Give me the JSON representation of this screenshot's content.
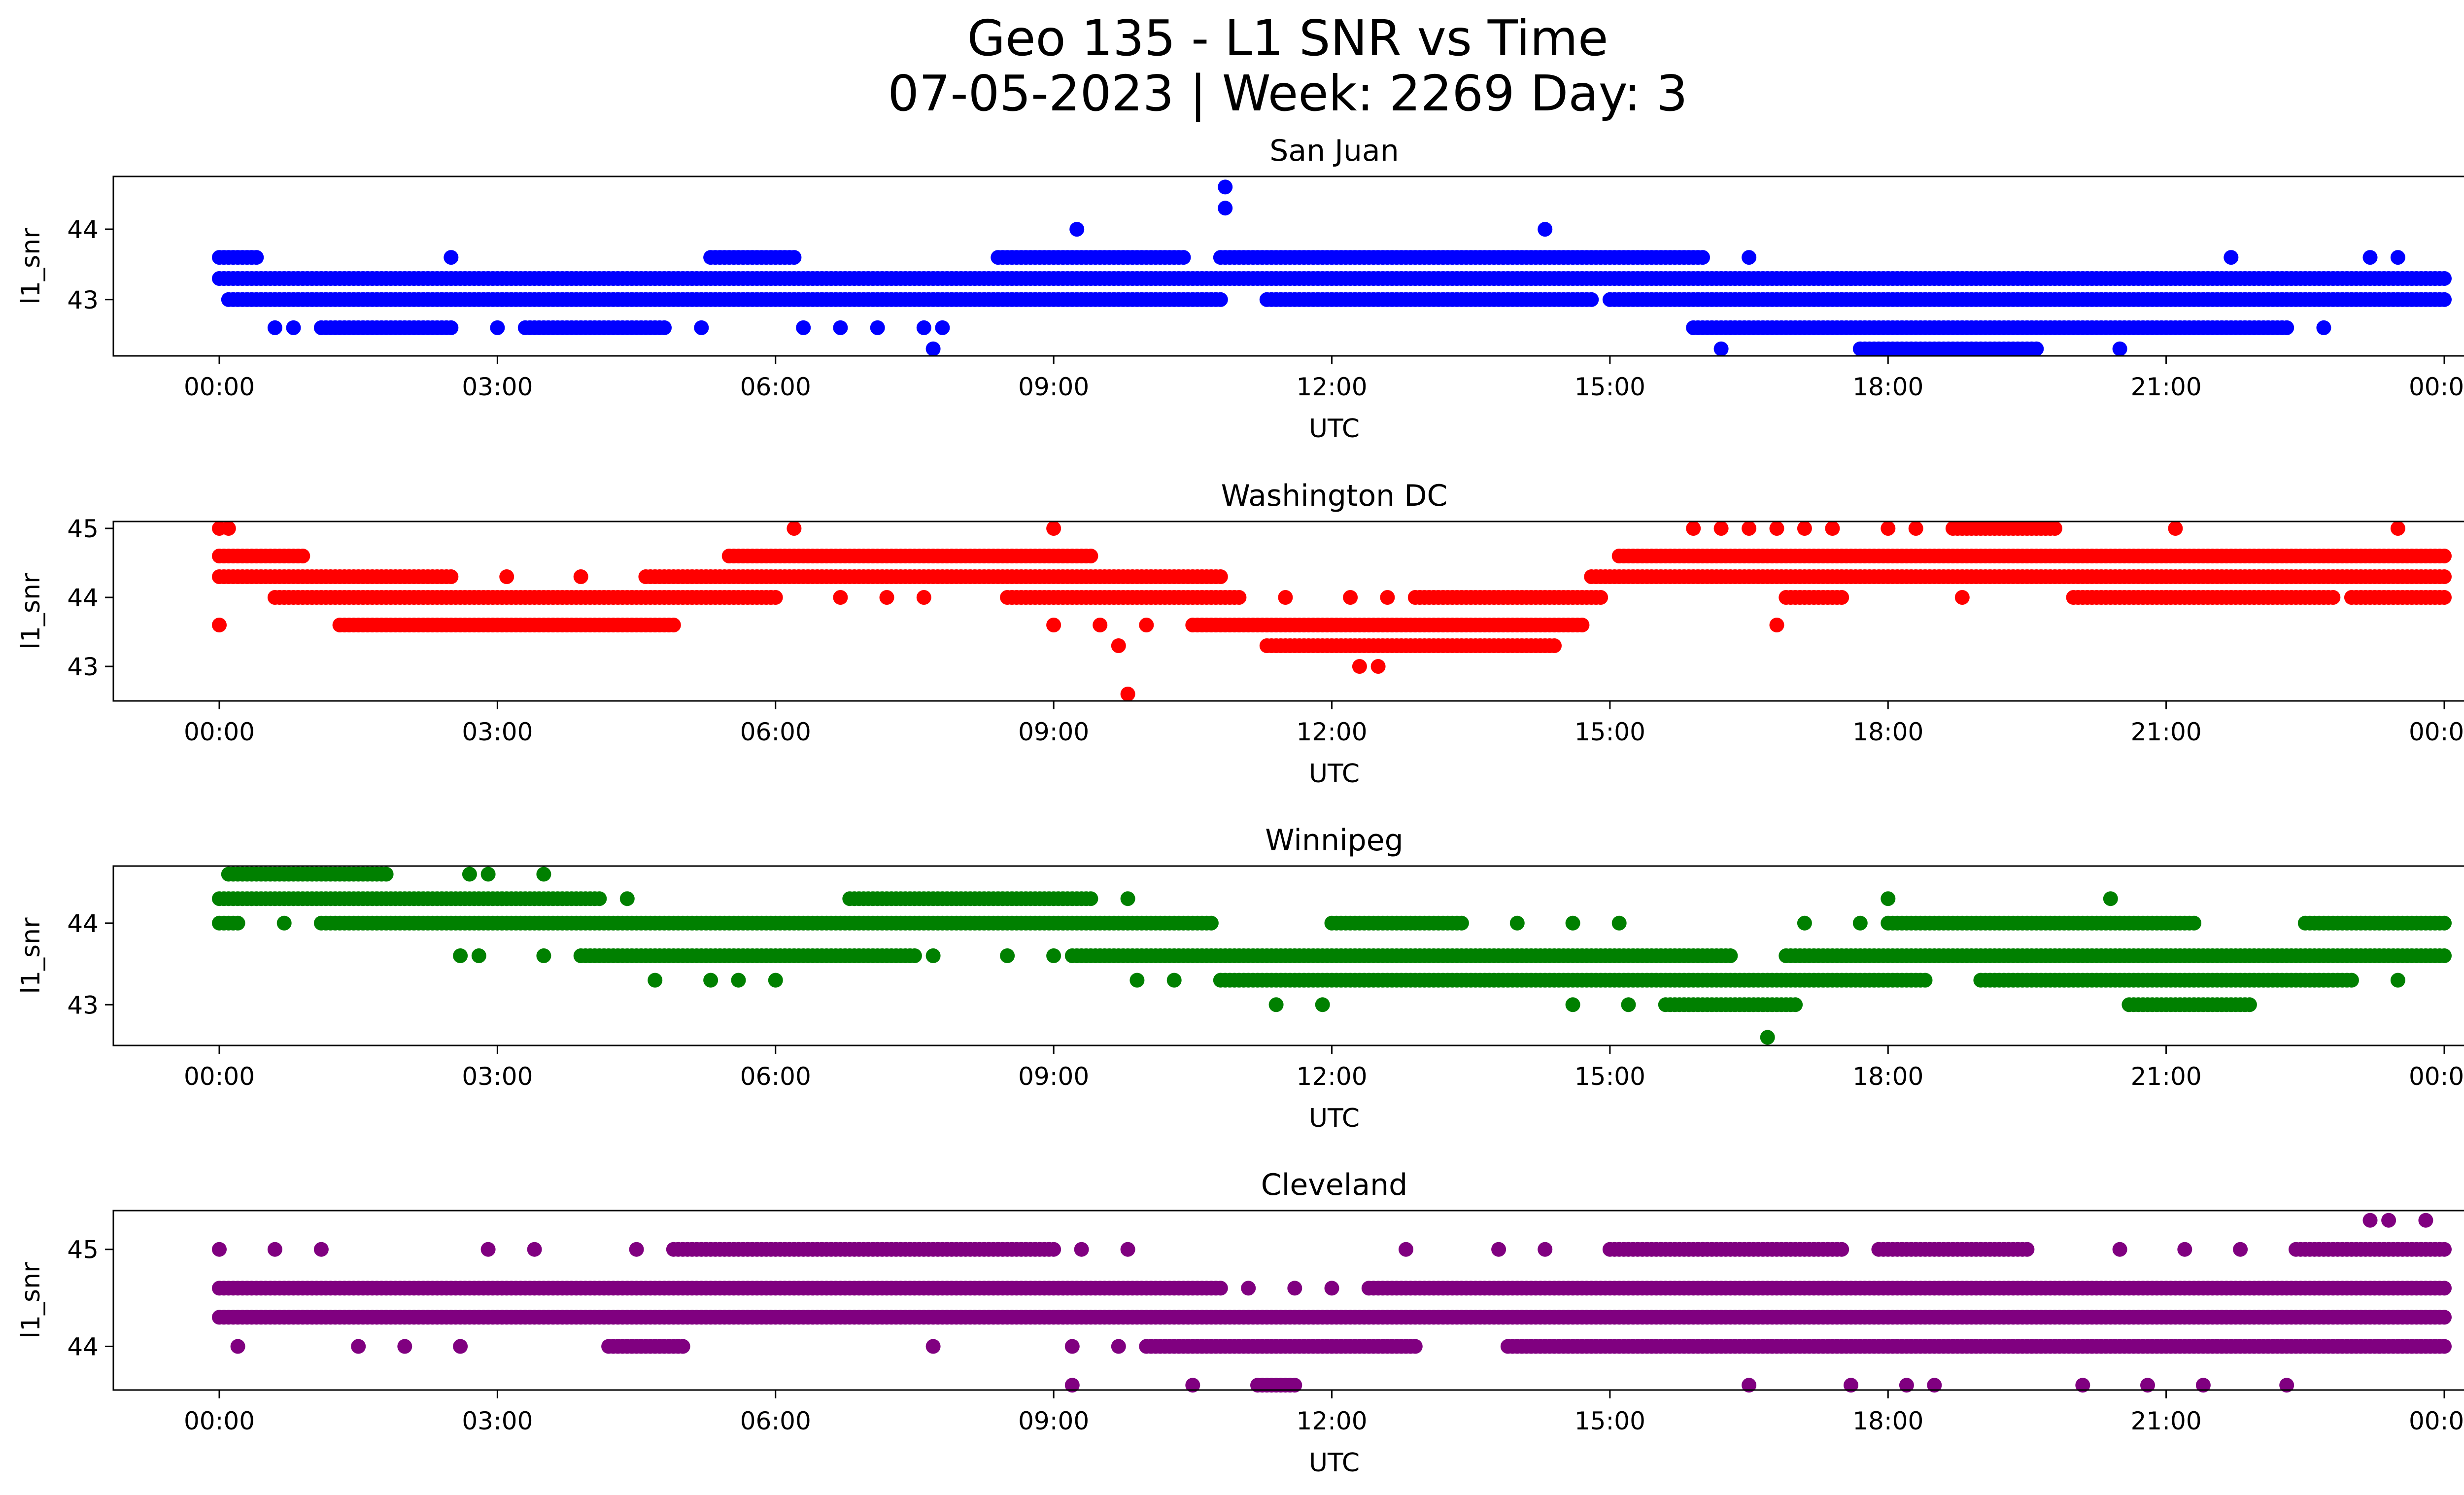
{
  "title_line1": "Geo 135 - L1 SNR vs Time",
  "title_line2": "07-05-2023 | Week: 2269 Day: 3",
  "chart_data": [
    {
      "type": "scatter",
      "title": "San Juan",
      "color": "#0000ff",
      "xlabel": "UTC",
      "ylabel": "l1_snr",
      "x_unit": "hours UTC",
      "xlim": [
        "00:00",
        "24:00"
      ],
      "ylim": [
        42.2,
        44.75
      ],
      "yticks": [
        43,
        44
      ],
      "xtick_labels": [
        "00:00",
        "03:00",
        "06:00",
        "09:00",
        "12:00",
        "15:00",
        "18:00",
        "21:00",
        "00:00"
      ],
      "bands": [
        {
          "y": 43.3,
          "segments": [
            [
              0.0,
              17.6
            ]
          ]
        },
        {
          "y": 43.6,
          "segments": [
            [
              0.0,
              0.4
            ],
            [
              5.3,
              6.2
            ],
            [
              8.4,
              10.4
            ],
            [
              10.8,
              16.0
            ]
          ],
          "dots": [
            2.5,
            16.5,
            21.7,
            23.2,
            23.5
          ]
        },
        {
          "y": 43.0,
          "segments": [
            [
              0.1,
              10.8
            ],
            [
              11.3,
              14.8
            ],
            [
              15.0,
              24.0
            ]
          ],
          "dots": []
        },
        {
          "y": 42.6,
          "segments": [
            [
              1.1,
              2.5
            ],
            [
              3.3,
              4.8
            ],
            [
              15.9,
              22.3
            ]
          ],
          "dots": [
            0.6,
            0.8,
            3.0,
            5.2,
            6.3,
            6.7,
            7.1,
            7.6,
            7.8,
            16.3,
            22.7
          ]
        },
        {
          "y": 43.3,
          "segments": [
            [
              17.6,
              24.0
            ]
          ],
          "dots": []
        },
        {
          "y": 42.3,
          "segments": [
            [
              17.7,
              19.6
            ]
          ],
          "dots": [
            7.7,
            16.2,
            20.5
          ]
        }
      ],
      "points": [
        {
          "x": 9.25,
          "y": 44.0
        },
        {
          "x": 14.3,
          "y": 44.0
        },
        {
          "x": 10.85,
          "y": 44.3
        },
        {
          "x": 10.85,
          "y": 44.6
        },
        {
          "x": 19.5,
          "y": 43.3
        }
      ]
    },
    {
      "type": "scatter",
      "title": "Washington DC",
      "color": "#ff0000",
      "xlabel": "UTC",
      "ylabel": "l1_snr",
      "x_unit": "hours UTC",
      "xlim": [
        "00:00",
        "24:00"
      ],
      "ylim": [
        42.5,
        45.1
      ],
      "yticks": [
        43,
        44,
        45
      ],
      "xtick_labels": [
        "00:00",
        "03:00",
        "06:00",
        "09:00",
        "12:00",
        "15:00",
        "18:00",
        "21:00",
        "00:00"
      ],
      "bands": [
        {
          "y": 44.6,
          "segments": [
            [
              0.0,
              0.9
            ],
            [
              5.5,
              9.4
            ],
            [
              15.1,
              24.0
            ]
          ],
          "dots": []
        },
        {
          "y": 44.3,
          "segments": [
            [
              0.0,
              2.5
            ],
            [
              4.6,
              10.8
            ],
            [
              14.8,
              24.0
            ]
          ],
          "dots": [
            3.1,
            3.9
          ]
        },
        {
          "y": 44.0,
          "segments": [
            [
              0.6,
              6.0
            ],
            [
              8.5,
              11.0
            ],
            [
              12.9,
              14.9
            ],
            [
              16.9,
              17.5
            ],
            [
              20.0,
              22.8
            ],
            [
              23.0,
              24.0
            ]
          ],
          "dots": [
            6.7,
            7.2,
            7.6,
            11.5,
            12.2,
            12.6,
            18.8,
            21.0
          ]
        },
        {
          "y": 43.6,
          "segments": [
            [
              1.3,
              4.9
            ],
            [
              10.5,
              14.7
            ]
          ],
          "dots": [
            0.0,
            9.0,
            9.5,
            10.0
          ]
        },
        {
          "y": 43.3,
          "segments": [
            [
              11.3,
              14.4
            ]
          ],
          "dots": [
            9.7
          ]
        },
        {
          "y": 43.0,
          "segments": [],
          "dots": [
            12.3,
            12.5
          ]
        },
        {
          "y": 42.6,
          "segments": [],
          "dots": [
            9.8
          ]
        },
        {
          "y": 45.0,
          "segments": [
            [
              18.7,
              19.8
            ]
          ],
          "dots": [
            0.0,
            0.1,
            6.2,
            9.0,
            15.9,
            16.2,
            16.5,
            16.8,
            17.1,
            17.4,
            18.0,
            18.3,
            21.1,
            23.5
          ]
        },
        {
          "y": 43.6,
          "segments": [],
          "dots": [
            16.8
          ]
        }
      ],
      "points": []
    },
    {
      "type": "scatter",
      "title": "Winnipeg",
      "color": "#008000",
      "xlabel": "UTC",
      "ylabel": "l1_snr",
      "x_unit": "hours UTC",
      "xlim": [
        "00:00",
        "24:00"
      ],
      "ylim": [
        42.5,
        44.7
      ],
      "yticks": [
        43,
        44
      ],
      "xtick_labels": [
        "00:00",
        "03:00",
        "06:00",
        "09:00",
        "12:00",
        "15:00",
        "18:00",
        "21:00",
        "00:00"
      ],
      "bands": [
        {
          "y": 44.6,
          "segments": [
            [
              0.1,
              1.8
            ]
          ],
          "dots": [
            2.7,
            2.9,
            3.5
          ]
        },
        {
          "y": 44.3,
          "segments": [
            [
              0.0,
              4.1
            ],
            [
              6.8,
              9.4
            ]
          ],
          "dots": [
            4.4,
            9.8
          ]
        },
        {
          "y": 44.0,
          "segments": [
            [
              0.0,
              0.2
            ],
            [
              1.1,
              10.7
            ],
            [
              12.0,
              13.4
            ],
            [
              18.0,
              21.3
            ],
            [
              22.5,
              24.0
            ]
          ],
          "dots": [
            0.7,
            14.0,
            14.6,
            15.1,
            17.1,
            17.7
          ]
        },
        {
          "y": 43.6,
          "segments": [
            [
              3.9,
              7.5
            ],
            [
              9.2,
              16.3
            ],
            [
              16.9,
              24.0
            ]
          ],
          "dots": [
            2.6,
            2.8,
            3.5,
            7.7,
            8.5,
            9.0
          ]
        },
        {
          "y": 43.3,
          "segments": [
            [
              10.8,
              18.4
            ],
            [
              19.0,
              23.0
            ]
          ],
          "dots": [
            4.7,
            5.3,
            5.6,
            6.0,
            9.9,
            10.3,
            23.5
          ]
        },
        {
          "y": 43.0,
          "segments": [
            [
              15.6,
              17.0
            ],
            [
              20.6,
              21.9
            ]
          ],
          "dots": [
            11.4,
            11.9,
            14.6,
            15.2
          ]
        },
        {
          "y": 42.6,
          "segments": [],
          "dots": [
            16.7
          ]
        },
        {
          "y": 44.3,
          "segments": [],
          "dots": [
            18.0,
            20.4
          ]
        }
      ],
      "points": []
    },
    {
      "type": "scatter",
      "title": "Cleveland",
      "color": "#800080",
      "xlabel": "UTC",
      "ylabel": "l1_snr",
      "x_unit": "hours UTC",
      "xlim": [
        "00:00",
        "24:00"
      ],
      "ylim": [
        43.55,
        45.4
      ],
      "yticks": [
        44,
        45
      ],
      "xtick_labels": [
        "00:00",
        "03:00",
        "06:00",
        "09:00",
        "12:00",
        "15:00",
        "18:00",
        "21:00",
        "00:00"
      ],
      "bands": [
        {
          "y": 44.6,
          "segments": [
            [
              0.0,
              10.8
            ],
            [
              12.4,
              24.0
            ]
          ],
          "dots": [
            11.1,
            11.6,
            12.0
          ]
        },
        {
          "y": 44.3,
          "segments": [
            [
              0.0,
              24.0
            ]
          ],
          "dots": []
        },
        {
          "y": 45.0,
          "segments": [
            [
              4.9,
              9.0
            ],
            [
              15.0,
              17.5
            ],
            [
              17.9,
              19.5
            ],
            [
              22.4,
              24.0
            ]
          ],
          "dots": [
            0.0,
            0.6,
            1.1,
            2.9,
            3.4,
            4.5,
            9.3,
            9.8,
            12.8,
            13.8,
            14.3,
            16.0,
            20.5,
            21.2,
            21.8
          ]
        },
        {
          "y": 44.0,
          "segments": [
            [
              4.2,
              5.0
            ],
            [
              10.0,
              12.9
            ],
            [
              13.9,
              24.0
            ]
          ],
          "dots": [
            0.2,
            1.5,
            2.0,
            2.6,
            7.7,
            9.2,
            9.7
          ]
        },
        {
          "y": 43.6,
          "segments": [
            [
              11.2,
              11.6
            ]
          ],
          "dots": [
            9.2,
            10.5,
            16.5,
            17.6,
            18.2,
            18.5,
            20.1,
            20.8,
            21.4,
            22.3
          ]
        },
        {
          "y": 45.3,
          "segments": [],
          "dots": [
            23.2,
            23.4,
            23.8
          ]
        },
        {
          "y": 44.0,
          "segments": [],
          "dots": [
            23.3
          ]
        }
      ],
      "points": []
    }
  ]
}
